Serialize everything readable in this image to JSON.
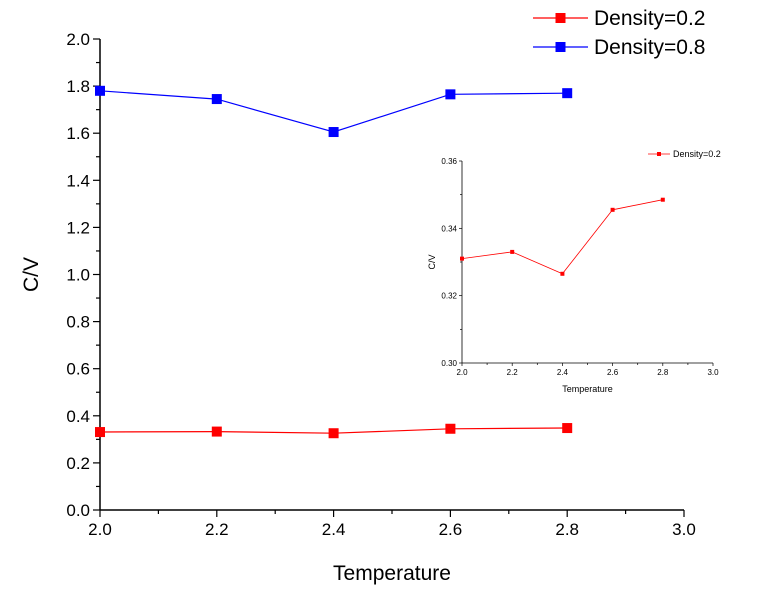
{
  "colors": {
    "density_02": "#ff0000",
    "density_08": "#0000ff",
    "axis": "#000000"
  },
  "chart_data": [
    {
      "type": "line",
      "title": "",
      "xlabel": "Temperature",
      "ylabel": "C/V",
      "xlim": [
        2.0,
        3.0
      ],
      "ylim": [
        0.0,
        2.0
      ],
      "xticks": [
        "2.0",
        "2.2",
        "2.4",
        "2.6",
        "2.8",
        "3.0"
      ],
      "yticks": [
        "0.0",
        "0.2",
        "0.4",
        "0.6",
        "0.8",
        "1.0",
        "1.2",
        "1.4",
        "1.6",
        "1.8",
        "2.0"
      ],
      "legend_position": "top-right",
      "marker": "square",
      "x": [
        2.0,
        2.2,
        2.4,
        2.6,
        2.8
      ],
      "series": [
        {
          "name": "Density=0.2",
          "color": "#ff0000",
          "values": [
            0.331,
            0.333,
            0.326,
            0.345,
            0.348
          ]
        },
        {
          "name": "Density=0.8",
          "color": "#0000ff",
          "values": [
            1.78,
            1.745,
            1.605,
            1.765,
            1.77
          ]
        }
      ]
    },
    {
      "type": "line",
      "title": "",
      "xlabel": "Temperature",
      "ylabel": "C/V",
      "xlim": [
        2.0,
        3.0
      ],
      "ylim": [
        0.3,
        0.36
      ],
      "xticks": [
        "2.0",
        "2.2",
        "2.4",
        "2.6",
        "2.8",
        "3.0"
      ],
      "yticks": [
        "0.30",
        "0.32",
        "0.34",
        "0.36"
      ],
      "legend_position": "top-right",
      "marker": "square",
      "x": [
        2.0,
        2.2,
        2.4,
        2.6,
        2.8
      ],
      "series": [
        {
          "name": "Density=0.2",
          "color": "#ff0000",
          "values": [
            0.331,
            0.333,
            0.3265,
            0.3455,
            0.3485
          ]
        }
      ]
    }
  ]
}
